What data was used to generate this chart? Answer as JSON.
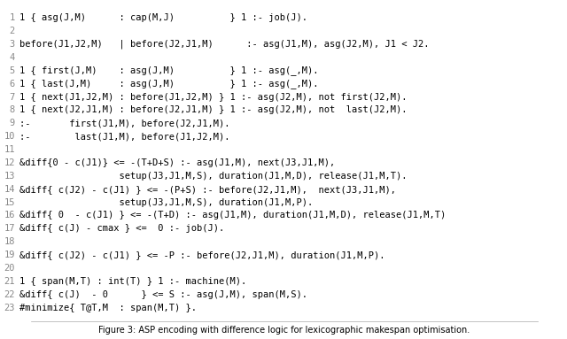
{
  "lines": [
    {
      "num": 1,
      "text": "1 { asg(J,M)      : cap(M,J)          } 1 :- job(J)."
    },
    {
      "num": 2,
      "text": ""
    },
    {
      "num": 3,
      "text": "before(J1,J2,M)   | before(J2,J1,M)      :- asg(J1,M), asg(J2,M), J1 < J2."
    },
    {
      "num": 4,
      "text": ""
    },
    {
      "num": 5,
      "text": "1 { first(J,M)    : asg(J,M)          } 1 :- asg(_,M)."
    },
    {
      "num": 6,
      "text": "1 { last(J,M)     : asg(J,M)          } 1 :- asg(_,M)."
    },
    {
      "num": 7,
      "text": "1 { next(J1,J2,M) : before(J1,J2,M) } 1 :- asg(J2,M), not first(J2,M)."
    },
    {
      "num": 8,
      "text": "1 { next(J2,J1,M) : before(J2,J1,M) } 1 :- asg(J2,M), not  last(J2,M)."
    },
    {
      "num": 9,
      "text": ":-       first(J1,M), before(J2,J1,M)."
    },
    {
      "num": 10,
      "text": ":-        last(J1,M), before(J1,J2,M)."
    },
    {
      "num": 11,
      "text": ""
    },
    {
      "num": 12,
      "text": "&diff{0 - c(J1)} <= -(T+D+S) :- asg(J1,M), next(J3,J1,M),"
    },
    {
      "num": 13,
      "text": "                  setup(J3,J1,M,S), duration(J1,M,D), release(J1,M,T)."
    },
    {
      "num": 14,
      "text": "&diff{ c(J2) - c(J1) } <= -(P+S) :- before(J2,J1,M),  next(J3,J1,M),"
    },
    {
      "num": 15,
      "text": "                  setup(J3,J1,M,S), duration(J1,M,P)."
    },
    {
      "num": 16,
      "text": "&diff{ 0  - c(J1) } <= -(T+D) :- asg(J1,M), duration(J1,M,D), release(J1,M,T)"
    },
    {
      "num": 17,
      "text": "&diff{ c(J) - cmax } <=  0 :- job(J)."
    },
    {
      "num": 18,
      "text": ""
    },
    {
      "num": 19,
      "text": "&diff{ c(J2) - c(J1) } <= -P :- before(J2,J1,M), duration(J1,M,P)."
    },
    {
      "num": 20,
      "text": ""
    },
    {
      "num": 21,
      "text": "1 { span(M,T) : int(T) } 1 :- machine(M)."
    },
    {
      "num": 22,
      "text": "&diff{ c(J)  - 0      } <= S :- asg(J,M), span(M,S)."
    },
    {
      "num": 23,
      "text": "#minimize{ T@T,M  : span(M,T) }."
    }
  ],
  "caption": "Figure 3: ASP encoding with difference logic for lexicographic makespan optimisation.",
  "font_family": "monospace",
  "font_size": 7.5,
  "num_color": "#888888",
  "text_color": "#000000",
  "bg_color": "#ffffff",
  "caption_fontsize": 7.0,
  "figsize": [
    6.4,
    3.83
  ],
  "dpi": 100
}
